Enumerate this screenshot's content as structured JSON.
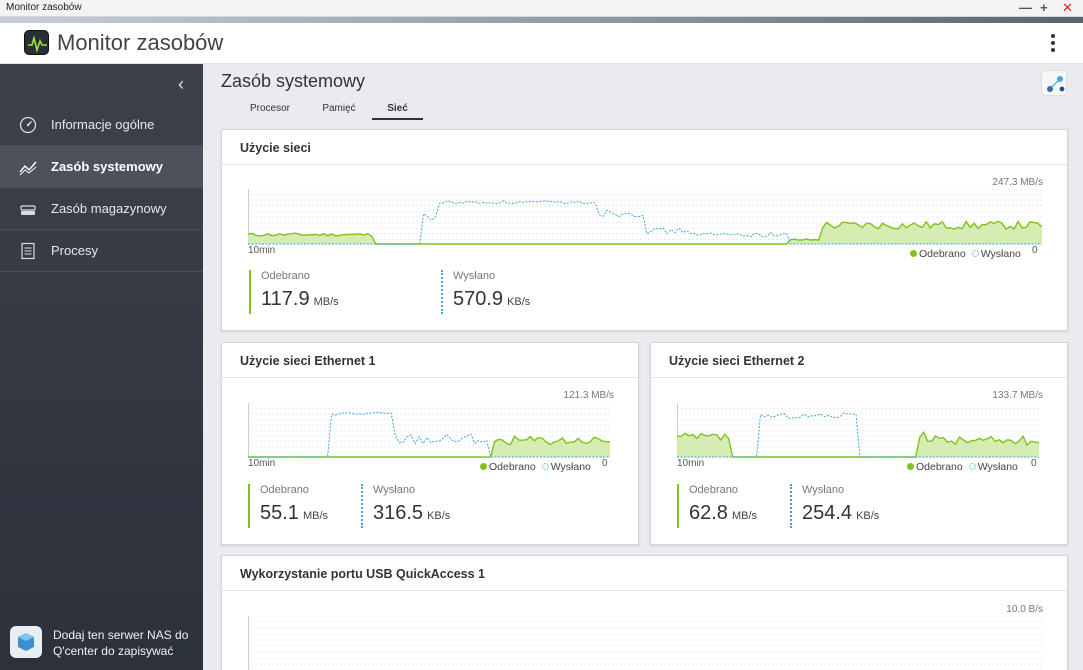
{
  "window": {
    "title": "Monitor zasobów"
  },
  "header": {
    "app_title": "Monitor zasobów"
  },
  "sidebar": {
    "items": [
      {
        "label": "Informacje ogólne",
        "icon": "gauge-icon"
      },
      {
        "label": "Zasób systemowy",
        "icon": "chart-line-icon",
        "active": true
      },
      {
        "label": "Zasób magazynowy",
        "icon": "storage-icon"
      },
      {
        "label": "Procesy",
        "icon": "list-icon"
      }
    ],
    "promo": "Dodaj ten serwer NAS do Q'center do zapisywać"
  },
  "main": {
    "title": "Zasób systemowy",
    "tabs": [
      {
        "label": "Procesor"
      },
      {
        "label": "Pamięć"
      },
      {
        "label": "Sieć",
        "active": true
      }
    ]
  },
  "legend": {
    "rx": "Odebrano",
    "tx": "Wysłano"
  },
  "axis": {
    "left": "10min",
    "right": "0"
  },
  "cards": {
    "total": {
      "title": "Użycie sieci",
      "max": "247.3 MB/s",
      "rx_label": "Odebrano",
      "rx_value": "117.9",
      "rx_unit": "MB/s",
      "tx_label": "Wysłano",
      "tx_value": "570.9",
      "tx_unit": "KB/s"
    },
    "eth1": {
      "title": "Użycie sieci Ethernet 1",
      "max": "121.3 MB/s",
      "rx_label": "Odebrano",
      "rx_value": "55.1",
      "rx_unit": "MB/s",
      "tx_label": "Wysłano",
      "tx_value": "316.5",
      "tx_unit": "KB/s"
    },
    "eth2": {
      "title": "Użycie sieci Ethernet 2",
      "max": "133.7 MB/s",
      "rx_label": "Odebrano",
      "rx_value": "62.8",
      "rx_unit": "MB/s",
      "tx_label": "Wysłano",
      "tx_value": "254.4",
      "tx_unit": "KB/s"
    },
    "usb": {
      "title": "Wykorzystanie portu USB QuickAccess 1",
      "max": "10.0 B/s"
    }
  },
  "colors": {
    "rx": "#7fc31c",
    "tx": "#3da7e0"
  }
}
